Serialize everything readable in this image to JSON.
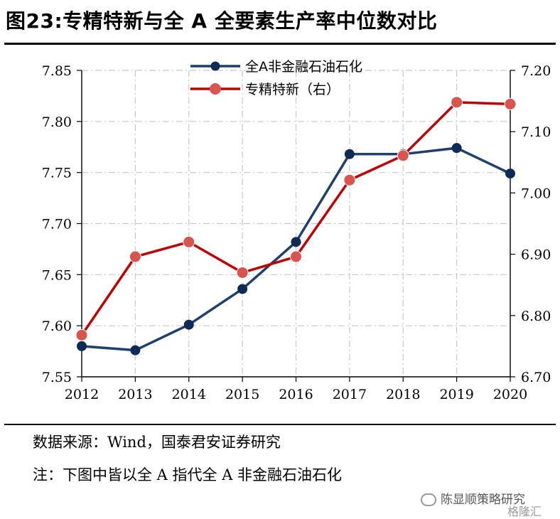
{
  "title": "图23:专精特新与全 A 全要素生产率中位数对比",
  "source_note": "数据来源：Wind，国泰君安证券研究",
  "footnote": "注：下图中皆以全 A 指代全 A 非金融石油石化",
  "watermark": "陈显顺策略研究",
  "watermark_brand": "格隆汇",
  "colors": {
    "series_blue": "#1f3f6e",
    "series_red": "#c00000",
    "marker_red": "#d9534f",
    "grid": "#c8c8c8"
  },
  "chart_data": {
    "type": "line",
    "x": [
      "2012",
      "2013",
      "2014",
      "2015",
      "2016",
      "2017",
      "2018",
      "2019",
      "2020"
    ],
    "y_left": {
      "ylim": [
        7.55,
        7.85
      ],
      "ticks": [
        "7.55",
        "7.60",
        "7.65",
        "7.70",
        "7.75",
        "7.80",
        "7.85"
      ]
    },
    "y_right": {
      "ylim": [
        6.7,
        7.2
      ],
      "ticks": [
        "6.70",
        "6.80",
        "6.90",
        "7.00",
        "7.10",
        "7.20"
      ]
    },
    "grid": true,
    "legend_position": "top-center",
    "series": [
      {
        "name": "全A非金融石油石化",
        "axis": "left",
        "color": "#1f3f6e",
        "values": [
          7.58,
          7.576,
          7.601,
          7.636,
          7.682,
          7.768,
          7.768,
          7.774,
          7.749
        ]
      },
      {
        "name": "专精特新（右）",
        "axis": "right",
        "color": "#c00000",
        "values": [
          6.768,
          6.896,
          6.92,
          6.87,
          6.896,
          7.021,
          7.061,
          7.148,
          7.145
        ]
      }
    ]
  }
}
